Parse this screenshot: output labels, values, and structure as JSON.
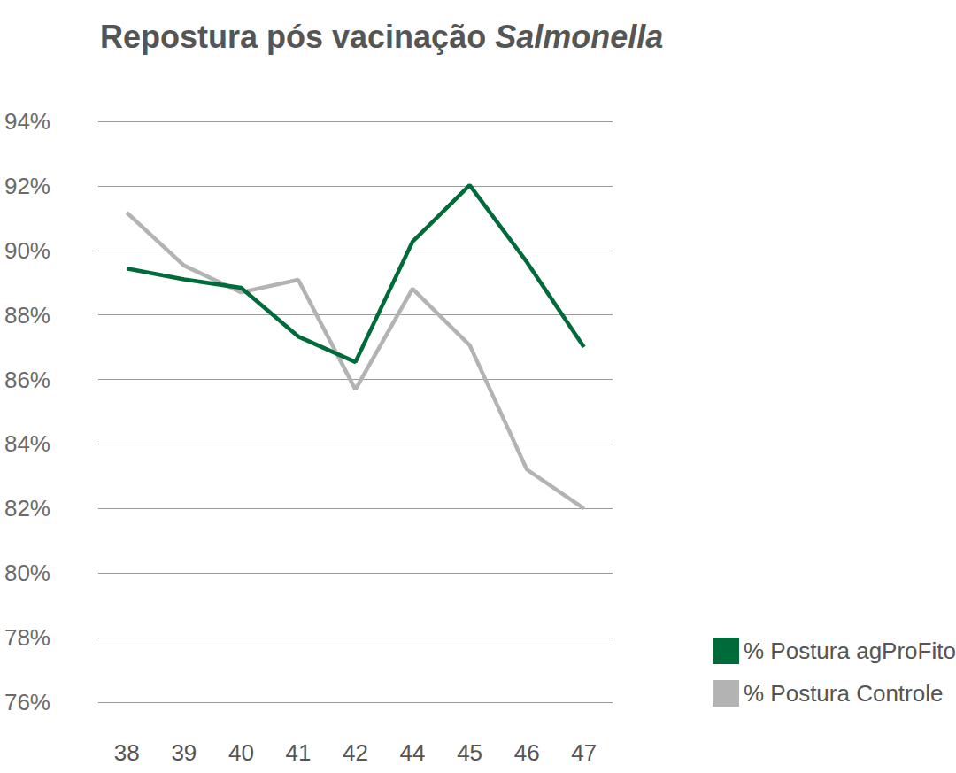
{
  "chart_data": {
    "type": "line",
    "title": "Repostura pós vacinação Salmonella",
    "categories": [
      "38",
      "39",
      "40",
      "41",
      "42",
      "44",
      "45",
      "46",
      "47"
    ],
    "series": [
      {
        "name": "% Postura agProFito",
        "color": "#006b3a",
        "values": [
          89.44,
          89.1,
          88.84,
          87.33,
          86.54,
          90.27,
          92.02,
          89.64,
          87.0
        ]
      },
      {
        "name": "% Postura Controle",
        "color": "#b3b3b3",
        "values": [
          91.17,
          89.53,
          88.7,
          89.09,
          85.69,
          88.81,
          87.06,
          83.21,
          82.0
        ]
      }
    ],
    "ylim": [
      76,
      94
    ],
    "yticks": [
      {
        "value": 76,
        "label": "76%"
      },
      {
        "value": 78,
        "label": "78%"
      },
      {
        "value": 80,
        "label": "80%"
      },
      {
        "value": 82,
        "label": "82%"
      },
      {
        "value": 84,
        "label": "84%"
      },
      {
        "value": 86,
        "label": "86%"
      },
      {
        "value": 88,
        "label": "88%"
      },
      {
        "value": 90,
        "label": "90%"
      },
      {
        "value": 92,
        "label": "92%"
      },
      {
        "value": 94,
        "label": "94%"
      }
    ],
    "grid": true,
    "legend": "lower right"
  }
}
